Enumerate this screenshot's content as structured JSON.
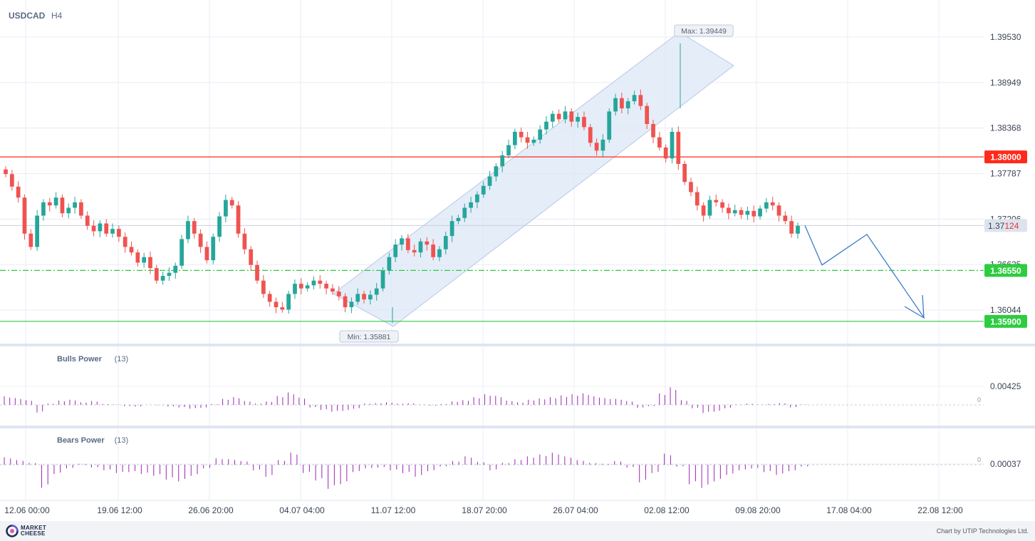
{
  "symbol": "USDCAD",
  "timeframe": "H4",
  "footer": {
    "brand": "MARKET CHEESE",
    "credit": "Chart by UTIP Technologies Ltd."
  },
  "colors": {
    "bull_candle": "#26a69a",
    "bear_candle": "#ef5350",
    "resistance": "#ff2a1a",
    "support": "#2ecc40",
    "channel": "#dce7f7",
    "forecast": "#3d7cc9",
    "indicator": "#9c27b0"
  },
  "chart_data": [
    {
      "type": "candlestick",
      "y_ticks": [
        1.3953,
        1.38949,
        1.38368,
        1.37787,
        1.37206,
        1.36625,
        1.36044
      ],
      "y_tick_labels": [
        "1.39530",
        "1.38949",
        "1.38368",
        "1.37787",
        "1.37206",
        "1.36625",
        "1.36044"
      ],
      "x_tick_labels": [
        "12.06 00:00",
        "19.06 12:00",
        "26.06 20:00",
        "04.07 04:00",
        "11.07 12:00",
        "18.07 20:00",
        "26.07 04:00",
        "02.08 12:00",
        "09.08 20:00",
        "17.08 04:00",
        "22.08 12:00"
      ],
      "current_price": {
        "value": 1.37124,
        "label_main": "1.37",
        "label_tail": "124"
      },
      "levels": [
        {
          "value": 1.38,
          "label": "1.38000",
          "style": "solid",
          "color": "#ff2a1a"
        },
        {
          "value": 1.3655,
          "label": "1.36550",
          "style": "dash-dot",
          "color": "#2ecc40"
        },
        {
          "value": 1.359,
          "label": "1.35900",
          "style": "solid",
          "color": "#2ecc40"
        }
      ],
      "max_label": {
        "text": "Max: 1.39449",
        "value": 1.39449,
        "x": "02.08 12:00"
      },
      "min_label": {
        "text": "Min: 1.35881",
        "value": 1.35881,
        "x": "11.07 12:00"
      },
      "ohlc_approx_close": [
        1.3778,
        1.3762,
        1.3748,
        1.3702,
        1.3685,
        1.3725,
        1.3742,
        1.3738,
        1.3748,
        1.3728,
        1.3735,
        1.3742,
        1.3725,
        1.3712,
        1.3705,
        1.3715,
        1.3702,
        1.3708,
        1.3698,
        1.3685,
        1.3678,
        1.3665,
        1.3672,
        1.3658,
        1.3642,
        1.3648,
        1.3652,
        1.3661,
        1.3695,
        1.3718,
        1.3702,
        1.3685,
        1.3668,
        1.3698,
        1.3724,
        1.3745,
        1.3738,
        1.3702,
        1.3682,
        1.3662,
        1.3642,
        1.3625,
        1.3615,
        1.3608,
        1.3605,
        1.3625,
        1.3638,
        1.3632,
        1.3636,
        1.3642,
        1.3638,
        1.3632,
        1.3628,
        1.3622,
        1.3608,
        1.3615,
        1.3625,
        1.3618,
        1.3624,
        1.3632,
        1.3655,
        1.3672,
        1.3688,
        1.3696,
        1.3681,
        1.3678,
        1.3692,
        1.3688,
        1.3672,
        1.3682,
        1.3699,
        1.3718,
        1.3722,
        1.3735,
        1.3742,
        1.3752,
        1.3763,
        1.3775,
        1.3788,
        1.3802,
        1.3815,
        1.3832,
        1.3825,
        1.3818,
        1.3822,
        1.3835,
        1.3845,
        1.3855,
        1.3848,
        1.3858,
        1.3845,
        1.3851,
        1.3838,
        1.3818,
        1.3808,
        1.3822,
        1.3858,
        1.3875,
        1.3862,
        1.3871,
        1.3879,
        1.3865,
        1.3842,
        1.3825,
        1.3812,
        1.3798,
        1.3832,
        1.3791,
        1.3768,
        1.3755,
        1.3738,
        1.3725,
        1.3745,
        1.3742,
        1.3735,
        1.3728,
        1.3732,
        1.3726,
        1.3731,
        1.3724,
        1.3734,
        1.3742,
        1.3738,
        1.3725,
        1.3718,
        1.3702,
        1.3712
      ],
      "forecast_path": [
        {
          "x": "after last candle",
          "y": 1.37124
        },
        {
          "x": "~14.08",
          "y": 1.3662
        },
        {
          "x": "~17.08",
          "y": 1.3701
        },
        {
          "x": "~21.08",
          "y": 1.3595
        }
      ]
    },
    {
      "type": "bar",
      "name": "Bulls Power",
      "period": "(13)",
      "y_tick_labels": [
        "0.00425",
        "0"
      ],
      "values_approx": [
        0.002,
        0.0016,
        0.0011,
        -0.0018,
        0.0003,
        0.001,
        0.0012,
        0.0006,
        0.0009,
        0.0002,
        0.0001,
        -0.0003,
        -0.0004,
        0.0,
        -0.0001,
        -0.0004,
        -0.0006,
        -0.0009,
        -0.0007,
        0.0002,
        0.0014,
        0.0018,
        0.0009,
        0.0003,
        0.0008,
        0.0021,
        0.0029,
        0.0017,
        -0.0006,
        -0.0012,
        -0.0016,
        -0.0014,
        -0.0009,
        0.0003,
        0.0004,
        0.0006,
        0.0003,
        0.0004,
        0.0001,
        -0.0002,
        0.0002,
        0.0008,
        0.0011,
        0.0018,
        0.0025,
        0.0021,
        0.001,
        0.0006,
        0.0012,
        0.0015,
        0.0018,
        0.0022,
        0.0025,
        0.0027,
        0.002,
        0.0016,
        0.0014,
        0.0009,
        -0.0007,
        -0.0003,
        0.0027,
        0.0041,
        0.0011,
        -0.0008,
        -0.0019,
        -0.0016,
        -0.0008,
        0.0001,
        0.0003,
        0.0001,
        0.0002,
        0.0004,
        -0.0006,
        0.0001
      ]
    },
    {
      "type": "bar",
      "name": "Bears Power",
      "period": "(13)",
      "y_tick_labels": [
        "0.00037",
        "0"
      ],
      "values_approx": [
        0.0008,
        0.0005,
        0.0002,
        -0.0025,
        -0.001,
        -0.0004,
        0.0001,
        -0.0003,
        -0.0006,
        -0.0009,
        -0.0008,
        -0.001,
        -0.0012,
        -0.0016,
        -0.0018,
        -0.0012,
        -0.0004,
        0.0007,
        0.0006,
        0.0004,
        -0.0006,
        -0.0013,
        0.0005,
        0.0013,
        -0.0009,
        -0.0017,
        -0.0026,
        -0.0021,
        -0.0008,
        -0.0004,
        -0.0003,
        -0.0006,
        -0.0009,
        -0.0013,
        -0.0007,
        -0.0002,
        0.0004,
        0.0009,
        0.0003,
        -0.0006,
        0.0002,
        0.0006,
        0.0009,
        0.0011,
        0.0013,
        0.0009,
        0.0005,
        0.0002,
        0.0001,
        0.0004,
        -0.0003,
        -0.0019,
        -0.0009,
        0.0012,
        -0.0002,
        -0.0021,
        -0.0025,
        -0.0018,
        -0.0011,
        -0.0006,
        -0.0004,
        -0.0008,
        -0.0011,
        -0.0007,
        -0.0002
      ]
    }
  ]
}
